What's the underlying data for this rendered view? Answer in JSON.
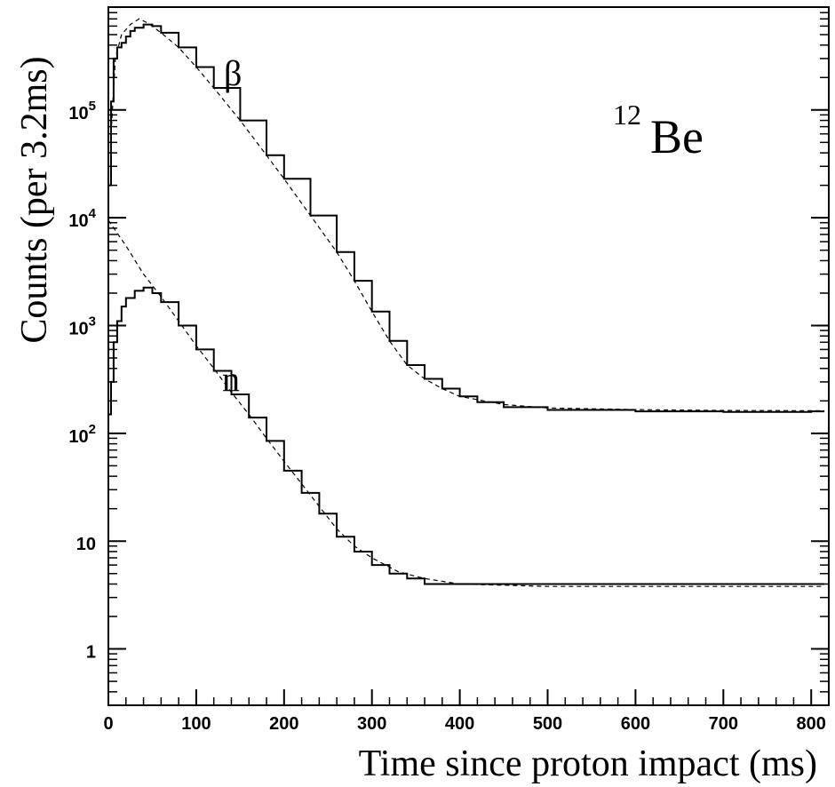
{
  "chart_data": {
    "type": "line",
    "xlabel": "Time since proton impact (ms)",
    "ylabel": "Counts (per 3.2ms)",
    "xlim": [
      0,
      820
    ],
    "ylim": [
      0.3,
      900000
    ],
    "yscale": "log",
    "grid": false,
    "x_ticks": [
      0,
      100,
      200,
      300,
      400,
      500,
      600,
      700,
      800
    ],
    "y_ticks": [
      {
        "value": 1,
        "base": "1",
        "exp": ""
      },
      {
        "value": 10,
        "base": "10",
        "exp": ""
      },
      {
        "value": 100,
        "base": "10",
        "exp": "2"
      },
      {
        "value": 1000,
        "base": "10",
        "exp": "3"
      },
      {
        "value": 10000,
        "base": "10",
        "exp": "4"
      },
      {
        "value": 100000,
        "base": "10",
        "exp": "5"
      }
    ],
    "annotations": {
      "isotope_mass": "12",
      "isotope_symbol": "Be",
      "beta_label": "β",
      "neutron_label": "n"
    },
    "series": [
      {
        "style": "histogram",
        "points": [
          [
            0,
            20000
          ],
          [
            3,
            120000
          ],
          [
            6,
            300000
          ],
          [
            10,
            380000
          ],
          [
            15,
            420000
          ],
          [
            20,
            480000
          ],
          [
            25,
            540000
          ],
          [
            30,
            580000
          ],
          [
            40,
            620000
          ],
          [
            50,
            600000
          ],
          [
            60,
            520000
          ],
          [
            80,
            380000
          ],
          [
            100,
            250000
          ],
          [
            120,
            160000
          ],
          [
            150,
            80000
          ],
          [
            180,
            38000
          ],
          [
            200,
            23000
          ],
          [
            230,
            10500
          ],
          [
            260,
            4800
          ],
          [
            280,
            2600
          ],
          [
            300,
            1350
          ],
          [
            320,
            720
          ],
          [
            340,
            430
          ],
          [
            360,
            320
          ],
          [
            380,
            260
          ],
          [
            400,
            220
          ],
          [
            420,
            195
          ],
          [
            450,
            175
          ],
          [
            500,
            165
          ],
          [
            600,
            160
          ],
          [
            700,
            158
          ],
          [
            800,
            160
          ],
          [
            815,
            160
          ]
        ]
      },
      {
        "style": "dashed-fit",
        "points": [
          [
            3,
            60000
          ],
          [
            8,
            300000
          ],
          [
            15,
            500000
          ],
          [
            25,
            620000
          ],
          [
            35,
            700000
          ],
          [
            45,
            640000
          ],
          [
            60,
            520000
          ],
          [
            80,
            380000
          ],
          [
            100,
            250000
          ],
          [
            120,
            160000
          ],
          [
            150,
            80000
          ],
          [
            180,
            38000
          ],
          [
            200,
            23000
          ],
          [
            230,
            10500
          ],
          [
            260,
            4800
          ],
          [
            280,
            2600
          ],
          [
            300,
            1350
          ],
          [
            320,
            720
          ],
          [
            340,
            430
          ],
          [
            360,
            320
          ],
          [
            380,
            260
          ],
          [
            400,
            220
          ],
          [
            450,
            185
          ],
          [
            500,
            172
          ],
          [
            600,
            166
          ],
          [
            700,
            163
          ],
          [
            815,
            162
          ]
        ]
      },
      {
        "style": "histogram",
        "points": [
          [
            0,
            150
          ],
          [
            3,
            300
          ],
          [
            6,
            700
          ],
          [
            10,
            1100
          ],
          [
            15,
            1500
          ],
          [
            20,
            1800
          ],
          [
            30,
            2100
          ],
          [
            40,
            2250
          ],
          [
            50,
            2000
          ],
          [
            60,
            1650
          ],
          [
            80,
            1000
          ],
          [
            100,
            600
          ],
          [
            120,
            380
          ],
          [
            140,
            230
          ],
          [
            160,
            140
          ],
          [
            180,
            85
          ],
          [
            200,
            45
          ],
          [
            220,
            28
          ],
          [
            240,
            18
          ],
          [
            260,
            11
          ],
          [
            280,
            8
          ],
          [
            300,
            6
          ],
          [
            320,
            5
          ],
          [
            340,
            4.5
          ],
          [
            360,
            4
          ],
          [
            400,
            4
          ],
          [
            500,
            4
          ],
          [
            600,
            4
          ],
          [
            700,
            4
          ],
          [
            800,
            4
          ],
          [
            815,
            4
          ]
        ]
      },
      {
        "style": "dashed-fit",
        "points": [
          [
            0,
            9500
          ],
          [
            20,
            5500
          ],
          [
            40,
            3000
          ],
          [
            60,
            1850
          ],
          [
            80,
            1100
          ],
          [
            100,
            650
          ],
          [
            120,
            400
          ],
          [
            140,
            240
          ],
          [
            160,
            150
          ],
          [
            180,
            90
          ],
          [
            200,
            55
          ],
          [
            220,
            34
          ],
          [
            240,
            21
          ],
          [
            260,
            13
          ],
          [
            280,
            9
          ],
          [
            300,
            7
          ],
          [
            330,
            5.2
          ],
          [
            360,
            4.5
          ],
          [
            400,
            4
          ],
          [
            450,
            3.9
          ],
          [
            500,
            3.8
          ],
          [
            600,
            3.8
          ],
          [
            700,
            3.8
          ],
          [
            815,
            3.8
          ]
        ]
      }
    ]
  }
}
